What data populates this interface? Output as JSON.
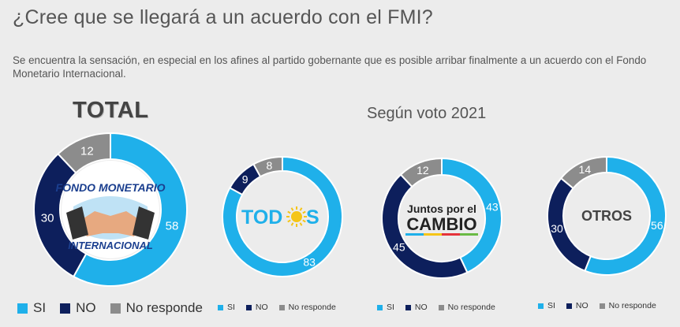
{
  "title": "¿Cree que se llegará a un acuerdo con el FMI?",
  "subtitle": "Se encuentra la sensación, en especial en los afines al partido gobernante que es posible arribar finalmente a un acuerdo con el Fondo Monetario Internacional.",
  "total_label": "TOTAL",
  "section_label": "Según voto 2021",
  "colors": {
    "si": "#1fb0ea",
    "no": "#0d1f5c",
    "nr": "#8c8c8c"
  },
  "logos": {
    "imf_top": "FONDO MONETARIO",
    "imf_bottom": "INTERNACIONAL",
    "todos_pre": "TOD",
    "todos_post": "S",
    "jxc_top": "Juntos por el",
    "jxc_bottom": "CAMBIO",
    "otros": "OTROS"
  },
  "chart_data": [
    {
      "type": "pie",
      "variant": "donut",
      "name": "TOTAL",
      "categories": [
        "SI",
        "NO",
        "No responde"
      ],
      "values": [
        58,
        30,
        12
      ]
    },
    {
      "type": "pie",
      "variant": "donut",
      "name": "TODOS",
      "categories": [
        "SI",
        "NO",
        "No responde"
      ],
      "values": [
        83,
        9,
        8
      ]
    },
    {
      "type": "pie",
      "variant": "donut",
      "name": "Juntos por el CAMBIO",
      "categories": [
        "SI",
        "NO",
        "No responde"
      ],
      "values": [
        43,
        45,
        12
      ]
    },
    {
      "type": "pie",
      "variant": "donut",
      "name": "OTROS",
      "categories": [
        "SI",
        "NO",
        "No responde"
      ],
      "values": [
        56,
        30,
        14
      ]
    }
  ],
  "legend": {
    "si": "SI",
    "no": "NO",
    "nr": "No responde"
  }
}
